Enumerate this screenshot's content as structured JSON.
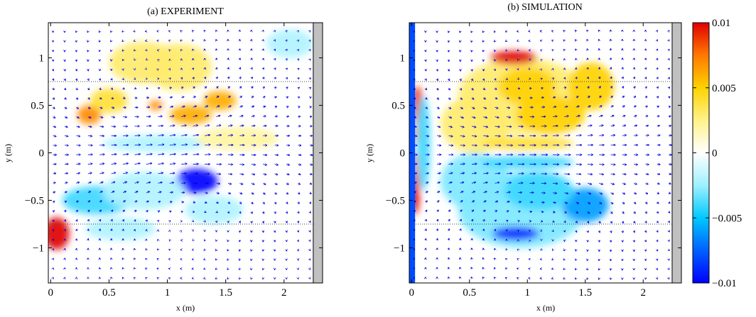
{
  "chart_data": [
    {
      "type": "heatmap",
      "title": "(a) EXPERIMENT",
      "xlabel": "x (m)",
      "ylabel": "y (m)",
      "xlim": [
        -0.02,
        2.33
      ],
      "ylim": [
        -1.37,
        1.37
      ],
      "xticks": [
        0,
        0.5,
        1,
        1.5,
        2
      ],
      "xtick_labels": [
        "0",
        "0.5",
        "1",
        "1.5",
        "2"
      ],
      "yticks": [
        -1,
        -0.5,
        0,
        0.5,
        1
      ],
      "ytick_labels": [
        "−1",
        "−0.5",
        "0",
        "0.5",
        "1"
      ],
      "reference_lines_y": [
        0.75,
        -0.75
      ],
      "wall_band_x": [
        2.25,
        2.33
      ],
      "field_blobs": [
        {
          "x": 0.05,
          "y": -0.85,
          "rx": 0.11,
          "ry": 0.17,
          "value": 0.01
        },
        {
          "x": 0.33,
          "y": 0.4,
          "rx": 0.1,
          "ry": 0.1,
          "value": 0.007
        },
        {
          "x": 0.5,
          "y": 0.55,
          "rx": 0.16,
          "ry": 0.13,
          "value": 0.004
        },
        {
          "x": 0.8,
          "y": 0.95,
          "rx": 0.3,
          "ry": 0.22,
          "value": 0.003
        },
        {
          "x": 1.1,
          "y": 0.9,
          "rx": 0.28,
          "ry": 0.25,
          "value": 0.003
        },
        {
          "x": 1.2,
          "y": 0.4,
          "rx": 0.18,
          "ry": 0.1,
          "value": 0.006
        },
        {
          "x": 1.45,
          "y": 0.55,
          "rx": 0.14,
          "ry": 0.1,
          "value": 0.006
        },
        {
          "x": 0.9,
          "y": 0.5,
          "rx": 0.06,
          "ry": 0.05,
          "value": 0.007
        },
        {
          "x": 0.9,
          "y": 0.1,
          "rx": 0.45,
          "ry": 0.09,
          "value": -0.002
        },
        {
          "x": 1.25,
          "y": -0.3,
          "rx": 0.18,
          "ry": 0.13,
          "value": -0.01
        },
        {
          "x": 0.4,
          "y": -0.5,
          "rx": 0.3,
          "ry": 0.15,
          "value": -0.004
        },
        {
          "x": 0.8,
          "y": -0.4,
          "rx": 0.35,
          "ry": 0.2,
          "value": -0.002
        },
        {
          "x": 0.6,
          "y": -0.8,
          "rx": 0.3,
          "ry": 0.12,
          "value": -0.002
        },
        {
          "x": 1.4,
          "y": -0.6,
          "rx": 0.25,
          "ry": 0.15,
          "value": -0.002
        },
        {
          "x": 2.05,
          "y": 1.15,
          "rx": 0.2,
          "ry": 0.15,
          "value": -0.002
        },
        {
          "x": 1.6,
          "y": 0.15,
          "rx": 0.35,
          "ry": 0.12,
          "value": 0.002
        }
      ]
    },
    {
      "type": "heatmap",
      "title": "(b) SIMULATION",
      "xlabel": "x (m)",
      "ylabel": "y (m)",
      "xlim": [
        -0.02,
        2.33
      ],
      "ylim": [
        -1.37,
        1.37
      ],
      "xticks": [
        0,
        0.5,
        1,
        1.5,
        2
      ],
      "xtick_labels": [
        "0",
        "0.5",
        "1",
        "1.5",
        "2"
      ],
      "yticks": [
        -1,
        -0.5,
        0,
        0.5,
        1
      ],
      "ytick_labels": [
        "−1",
        "−0.5",
        "0",
        "0.5",
        "1"
      ],
      "reference_lines_y": [
        0.75,
        -0.75
      ],
      "wall_band_x": [
        2.25,
        2.33
      ],
      "field_blobs": [
        {
          "x": 0.95,
          "y": 0.6,
          "rx": 0.55,
          "ry": 0.4,
          "value": 0.003
        },
        {
          "x": 0.55,
          "y": 0.3,
          "rx": 0.3,
          "ry": 0.3,
          "value": 0.003
        },
        {
          "x": 0.88,
          "y": 1.0,
          "rx": 0.2,
          "ry": 0.07,
          "value": 0.01
        },
        {
          "x": 1.0,
          "y": 0.7,
          "rx": 0.25,
          "ry": 0.2,
          "value": 0.005
        },
        {
          "x": 1.55,
          "y": 0.7,
          "rx": 0.2,
          "ry": 0.25,
          "value": 0.005
        },
        {
          "x": 1.2,
          "y": 0.4,
          "rx": 0.3,
          "ry": 0.2,
          "value": 0.005
        },
        {
          "x": 1.0,
          "y": 0.1,
          "rx": 0.4,
          "ry": 0.07,
          "value": 0.004
        },
        {
          "x": 0.95,
          "y": -0.6,
          "rx": 0.55,
          "ry": 0.4,
          "value": -0.003
        },
        {
          "x": 0.55,
          "y": -0.3,
          "rx": 0.3,
          "ry": 0.3,
          "value": -0.003
        },
        {
          "x": 0.9,
          "y": -0.85,
          "rx": 0.2,
          "ry": 0.07,
          "value": -0.009
        },
        {
          "x": 1.5,
          "y": -0.55,
          "rx": 0.2,
          "ry": 0.18,
          "value": -0.006
        },
        {
          "x": 1.1,
          "y": -0.4,
          "rx": 0.3,
          "ry": 0.2,
          "value": -0.004
        },
        {
          "x": 1.0,
          "y": -0.1,
          "rx": 0.4,
          "ry": 0.07,
          "value": -0.004
        },
        {
          "x": 0.05,
          "y": 0.5,
          "rx": 0.05,
          "ry": 0.2,
          "value": 0.009
        },
        {
          "x": 0.05,
          "y": 0.2,
          "rx": 0.05,
          "ry": 0.1,
          "value": 0.007
        },
        {
          "x": 0.03,
          "y": -0.4,
          "rx": 0.04,
          "ry": 0.25,
          "value": 0.01
        },
        {
          "x": 0.03,
          "y": -0.1,
          "rx": 0.03,
          "ry": 0.1,
          "value": 0.008
        },
        {
          "x": 0.1,
          "y": 0.1,
          "rx": 0.06,
          "ry": 0.5,
          "value": -0.004
        }
      ],
      "left_strip": {
        "x_range": [
          -0.02,
          0.03
        ],
        "value": -0.008
      }
    }
  ],
  "colorbar": {
    "min": -0.01,
    "max": 0.01,
    "ticks": [
      0.01,
      0.005,
      0,
      -0.005,
      -0.01
    ],
    "tick_labels": [
      "0.01",
      "0.005",
      "0",
      "−0.005",
      "−0.01"
    ]
  }
}
